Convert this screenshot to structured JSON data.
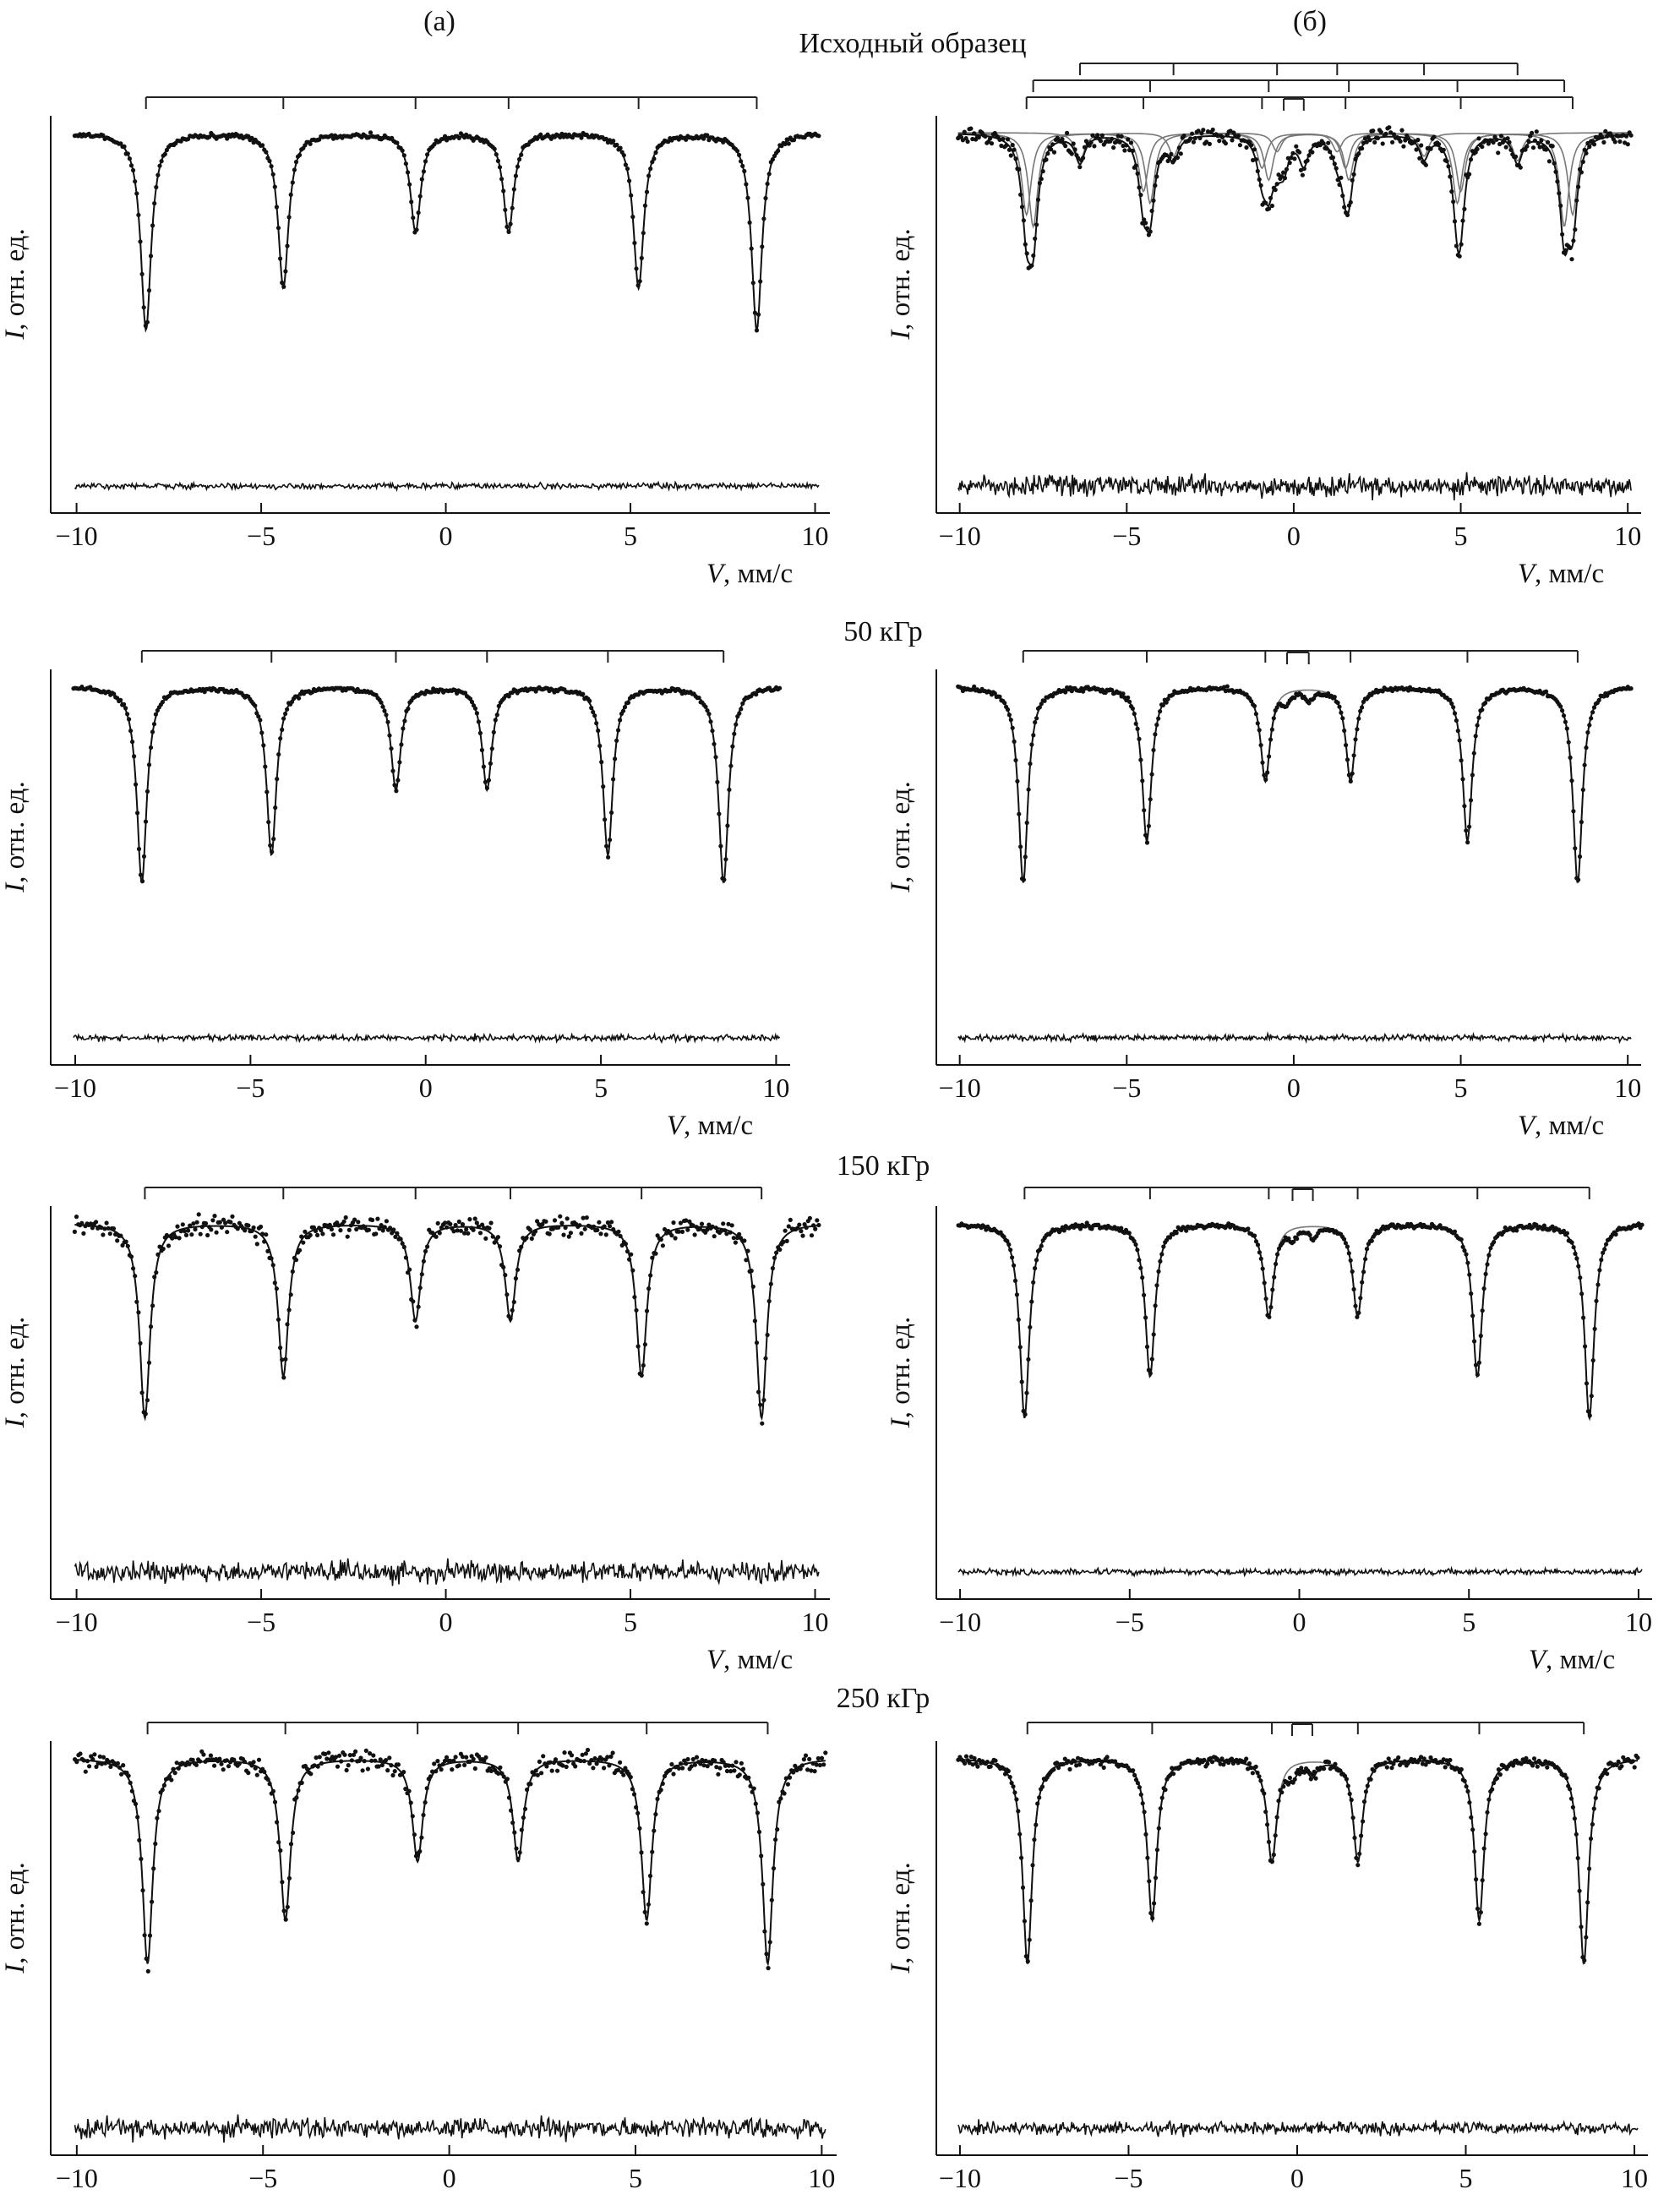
{
  "column_labels": [
    "(а)",
    "(б)"
  ],
  "row_labels": [
    "Исходный образец",
    "50 кГр",
    "150 кГр",
    "250 кГр"
  ],
  "axis": {
    "ylabel_italic": "I",
    "ylabel_rest": ", отн. ед.",
    "xlabel_italic": "V",
    "xlabel_rest": ", мм/с"
  },
  "chart_data": [
    {
      "type": "scatter",
      "panel": "a-initial",
      "xlim": [
        -10.7,
        10.4
      ],
      "xticks": [
        -10,
        -5,
        0,
        5,
        10
      ],
      "xtick_labels": [
        "−10",
        "−5",
        "0",
        "5",
        "10"
      ],
      "sextets": [
        {
          "lines": [
            -8.12,
            -4.4,
            -0.82,
            1.7,
            5.22,
            8.42
          ],
          "depth": [
            0.84,
            0.66,
            0.42,
            0.42,
            0.66,
            0.84
          ]
        }
      ],
      "doublets": [],
      "noise": "low"
    },
    {
      "type": "scatter",
      "panel": "b-initial",
      "xlim": [
        -10.7,
        10.4
      ],
      "xticks": [
        -10,
        -5,
        0,
        5,
        10
      ],
      "xtick_labels": [
        "−10",
        "−5",
        "0",
        "5",
        "10"
      ],
      "sextets": [
        {
          "lines": [
            -8.0,
            -4.5,
            -0.95,
            1.55,
            5.0,
            8.35
          ],
          "depth": [
            0.35,
            0.25,
            0.15,
            0.15,
            0.25,
            0.35
          ]
        },
        {
          "lines": [
            -7.8,
            -4.3,
            -0.75,
            1.65,
            4.9,
            8.1
          ],
          "depth": [
            0.4,
            0.3,
            0.2,
            0.2,
            0.3,
            0.4
          ]
        },
        {
          "lines": [
            -6.4,
            -3.6,
            -0.5,
            1.3,
            3.9,
            6.7
          ],
          "depth": [
            0.12,
            0.1,
            0.08,
            0.08,
            0.1,
            0.12
          ]
        }
      ],
      "doublets": [
        {
          "lines": [
            -0.3,
            0.3
          ],
          "depth": 0.12
        }
      ],
      "noise": "high"
    },
    {
      "type": "scatter",
      "panel": "a-50",
      "xlim": [
        -10.7,
        10.4
      ],
      "xticks": [
        -10,
        -5,
        0,
        5,
        10
      ],
      "xtick_labels": [
        "−10",
        "−5",
        "0",
        "5",
        "10"
      ],
      "sextets": [
        {
          "lines": [
            -8.1,
            -4.4,
            -0.85,
            1.75,
            5.2,
            8.5
          ],
          "depth": [
            0.84,
            0.72,
            0.44,
            0.44,
            0.72,
            0.84
          ]
        }
      ],
      "doublets": [],
      "noise": "low"
    },
    {
      "type": "scatter",
      "panel": "b-50",
      "xlim": [
        -10.7,
        10.4
      ],
      "xticks": [
        -10,
        -5,
        0,
        5,
        10
      ],
      "xtick_labels": [
        "−10",
        "−5",
        "0",
        "5",
        "10"
      ],
      "sextets": [
        {
          "lines": [
            -8.1,
            -4.4,
            -0.85,
            1.7,
            5.2,
            8.5
          ],
          "depth": [
            0.84,
            0.66,
            0.4,
            0.4,
            0.66,
            0.84
          ]
        }
      ],
      "doublets": [
        {
          "lines": [
            -0.2,
            0.45
          ],
          "depth": 0.05
        }
      ],
      "noise": "low"
    },
    {
      "type": "scatter",
      "panel": "a-150",
      "xlim": [
        -10.7,
        10.4
      ],
      "xticks": [
        -10,
        -5,
        0,
        5,
        10
      ],
      "xtick_labels": [
        "−10",
        "−5",
        "0",
        "5",
        "10"
      ],
      "sextets": [
        {
          "lines": [
            -8.15,
            -4.4,
            -0.82,
            1.75,
            5.3,
            8.55
          ],
          "depth": [
            0.84,
            0.66,
            0.42,
            0.42,
            0.66,
            0.84
          ]
        }
      ],
      "doublets": [],
      "noise": "high"
    },
    {
      "type": "scatter",
      "panel": "b-150",
      "xlim": [
        -10.7,
        10.4
      ],
      "xticks": [
        -10,
        -5,
        0,
        5,
        10
      ],
      "xtick_labels": [
        "−10",
        "−5",
        "0",
        "5",
        "10"
      ],
      "sextets": [
        {
          "lines": [
            -8.1,
            -4.4,
            -0.9,
            1.72,
            5.25,
            8.55
          ],
          "depth": [
            0.84,
            0.66,
            0.4,
            0.4,
            0.66,
            0.84
          ]
        }
      ],
      "doublets": [
        {
          "lines": [
            -0.2,
            0.4
          ],
          "depth": 0.05
        }
      ],
      "noise": "low"
    },
    {
      "type": "scatter",
      "panel": "a-250",
      "xlim": [
        -10.7,
        10.4
      ],
      "xticks": [
        -10,
        -5,
        0,
        5,
        10
      ],
      "xtick_labels": [
        "−10",
        "−5",
        "0",
        "5",
        "10"
      ],
      "sextets": [
        {
          "lines": [
            -8.1,
            -4.4,
            -0.85,
            1.85,
            5.3,
            8.55
          ],
          "depth": [
            0.84,
            0.66,
            0.42,
            0.42,
            0.66,
            0.84
          ]
        }
      ],
      "doublets": [],
      "noise": "high"
    },
    {
      "type": "scatter",
      "panel": "b-250",
      "xlim": [
        -10.7,
        10.4
      ],
      "xticks": [
        -10,
        -5,
        0,
        5,
        10
      ],
      "xtick_labels": [
        "−10",
        "−5",
        "0",
        "5",
        "10"
      ],
      "sextets": [
        {
          "lines": [
            -8.0,
            -4.3,
            -0.75,
            1.8,
            5.4,
            8.5
          ],
          "depth": [
            0.84,
            0.66,
            0.42,
            0.42,
            0.66,
            0.84
          ]
        }
      ],
      "doublets": [
        {
          "lines": [
            -0.15,
            0.45
          ],
          "depth": 0.06
        }
      ],
      "noise": "medium"
    }
  ]
}
